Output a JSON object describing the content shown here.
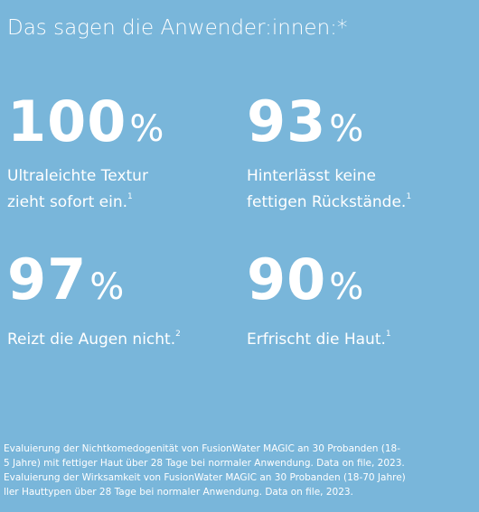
{
  "header": {
    "title": "Das sagen die Anwender:innen:*"
  },
  "stats": [
    {
      "number": 100,
      "unit": "%",
      "label": "Ultraleichte Textur zieht sofort ein.",
      "note": "1"
    },
    {
      "number": 93,
      "unit": "%",
      "label": "Hinterlässt keine fettigen Rückstände.",
      "note": "1"
    },
    {
      "number": 97,
      "unit": "%",
      "label": "Reizt die Augen nicht.",
      "note": "2"
    },
    {
      "number": 90,
      "unit": "%",
      "label": "Erfrischt die Haut.",
      "note": "1"
    }
  ],
  "footnotes": [
    "Evaluierung der Nichtkomedogenität von FusionWater MAGIC an 30 Probanden (18-",
    "5 Jahre) mit fettiger Haut über 28 Tage bei normaler Anwendung. Data on file, 2023.",
    "Evaluierung der Wirksamkeit von FusionWater MAGIC an 30 Probanden (18-70 Jahre)",
    "ller Hauttypen über 28 Tage bei normaler Anwendung. Data on file, 2023."
  ]
}
